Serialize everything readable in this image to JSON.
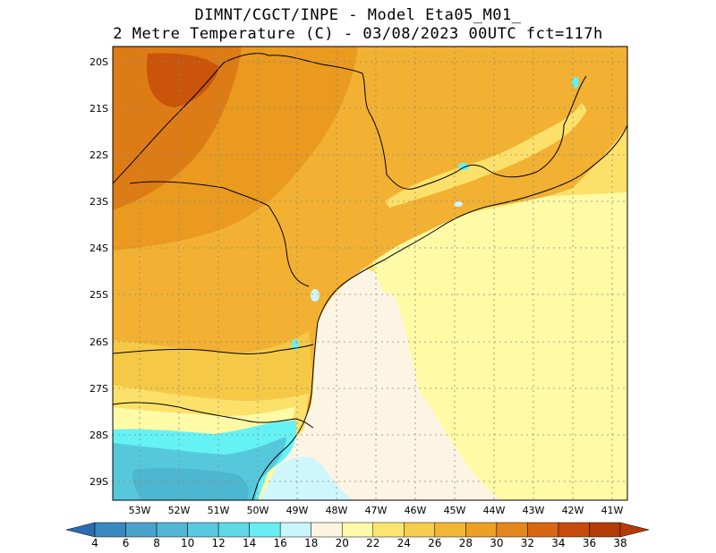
{
  "header": {
    "line1": "DIMNT/CGCT/INPE -  Model Eta05_M01_",
    "line2": "2 Metre Temperature (C) -  03/08/2023 00UTC fct=117h"
  },
  "map": {
    "lat_labels": [
      "20S",
      "21S",
      "22S",
      "23S",
      "24S",
      "25S",
      "26S",
      "27S",
      "28S",
      "29S"
    ],
    "lon_labels": [
      "53W",
      "52W",
      "51W",
      "50W",
      "49W",
      "48W",
      "47W",
      "46W",
      "45W",
      "44W",
      "43W",
      "42W",
      "41W"
    ],
    "colors": {
      "c18_20": "#cff6fd",
      "c20_22": "#fdf5e3",
      "c22_24": "#fefaa6",
      "c24_26": "#fbe16a",
      "c26_28": "#f5c946",
      "c28_30": "#f2b132",
      "c30_32": "#e99a1f",
      "c32_34": "#dd7b15",
      "c34_36": "#c9540a",
      "c14_16": "#56c8dc",
      "c16_18": "#65f2f5",
      "c12_14": "#4db6d0"
    }
  },
  "colorbar": {
    "labels": [
      "4",
      "6",
      "8",
      "10",
      "12",
      "14",
      "16",
      "18",
      "20",
      "22",
      "24",
      "26",
      "28",
      "30",
      "32",
      "34",
      "36",
      "38"
    ],
    "colors": [
      "#2b6cb0",
      "#3889c0",
      "#4aa3cc",
      "#52b7d4",
      "#58c9de",
      "#5fd9e8",
      "#66eef4",
      "#c7f6fb",
      "#fcf4e1",
      "#fdf9a8",
      "#fbe570",
      "#f6cd4c",
      "#f2b635",
      "#eda024",
      "#e4871b",
      "#d76713",
      "#c84b0b",
      "#b43a06"
    ]
  }
}
